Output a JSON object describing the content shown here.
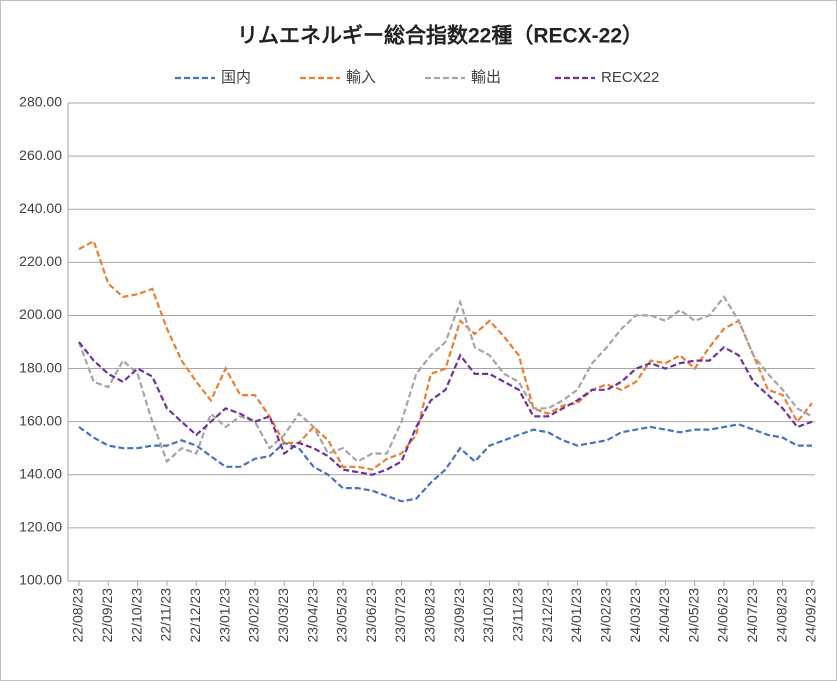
{
  "chart_data": {
    "type": "line",
    "title": "リムエネルギー総合指数22種（RECX-22）",
    "categories": [
      "22/08/23",
      null,
      "22/09/23",
      null,
      "22/10/23",
      null,
      "22/11/23",
      null,
      "22/12/23",
      null,
      "23/01/23",
      null,
      "23/02/23",
      null,
      "23/03/23",
      null,
      "23/04/23",
      null,
      "23/05/23",
      null,
      "23/06/23",
      null,
      "23/07/23",
      null,
      "23/08/23",
      null,
      "23/09/23",
      null,
      "23/10/23",
      null,
      "23/11/23",
      null,
      "23/12/23",
      null,
      "24/01/23",
      null,
      "24/02/23",
      null,
      "24/03/23",
      null,
      "24/04/23",
      null,
      "24/05/23",
      null,
      "24/06/23",
      null,
      "24/07/23",
      null,
      "24/08/23",
      null,
      "24/09/23"
    ],
    "series": [
      {
        "name": "国内",
        "color": "#4472c4",
        "values": [
          158,
          154,
          151,
          150,
          150,
          151,
          151,
          153,
          151,
          147,
          143,
          143,
          146,
          147,
          152,
          150,
          143,
          140,
          135,
          135,
          134,
          132,
          130,
          131,
          137,
          142,
          150,
          145,
          151,
          153,
          155,
          157,
          156,
          153,
          151,
          152,
          153,
          156,
          157,
          158,
          157,
          156,
          157,
          157,
          158,
          159,
          157,
          155,
          154,
          151,
          151
        ]
      },
      {
        "name": "輸入",
        "color": "#ed7d31",
        "values": [
          225,
          228,
          212,
          207,
          208,
          210,
          195,
          183,
          175,
          168,
          180,
          170,
          170,
          162,
          152,
          152,
          158,
          153,
          143,
          143,
          142,
          146,
          148,
          155,
          178,
          180,
          198,
          193,
          198,
          192,
          185,
          165,
          163,
          166,
          167,
          172,
          174,
          172,
          175,
          183,
          182,
          185,
          180,
          188,
          195,
          198,
          185,
          172,
          170,
          160,
          167
        ]
      },
      {
        "name": "輸出",
        "color": "#a5a5a5",
        "values": [
          190,
          175,
          173,
          183,
          178,
          160,
          145,
          150,
          148,
          163,
          158,
          162,
          160,
          150,
          155,
          163,
          158,
          148,
          150,
          145,
          148,
          148,
          160,
          178,
          185,
          190,
          205,
          188,
          185,
          178,
          175,
          165,
          165,
          168,
          172,
          182,
          188,
          195,
          200,
          200,
          198,
          202,
          198,
          200,
          207,
          198,
          185,
          178,
          172,
          165,
          162
        ]
      },
      {
        "name": "RECX22",
        "color": "#7030a0",
        "values": [
          190,
          183,
          178,
          175,
          180,
          177,
          165,
          160,
          155,
          160,
          165,
          163,
          160,
          162,
          148,
          152,
          150,
          147,
          142,
          141,
          140,
          142,
          145,
          158,
          168,
          172,
          185,
          178,
          178,
          175,
          172,
          162,
          162,
          165,
          168,
          172,
          172,
          175,
          180,
          182,
          180,
          182,
          183,
          183,
          188,
          185,
          175,
          170,
          165,
          158,
          160
        ]
      }
    ],
    "ylim": [
      100,
      280
    ],
    "yticks": [
      {
        "value": 100,
        "label": "100.00"
      },
      {
        "value": 120,
        "label": "120.00"
      },
      {
        "value": 140,
        "label": "140.00"
      },
      {
        "value": 160,
        "label": "160.00"
      },
      {
        "value": 180,
        "label": "180.00"
      },
      {
        "value": 200,
        "label": "200.00"
      },
      {
        "value": 220,
        "label": "220.00"
      },
      {
        "value": 240,
        "label": "240.00"
      },
      {
        "value": 260,
        "label": "260.00"
      },
      {
        "value": 280,
        "label": "280.00"
      }
    ],
    "grid": true,
    "legend": "top"
  }
}
